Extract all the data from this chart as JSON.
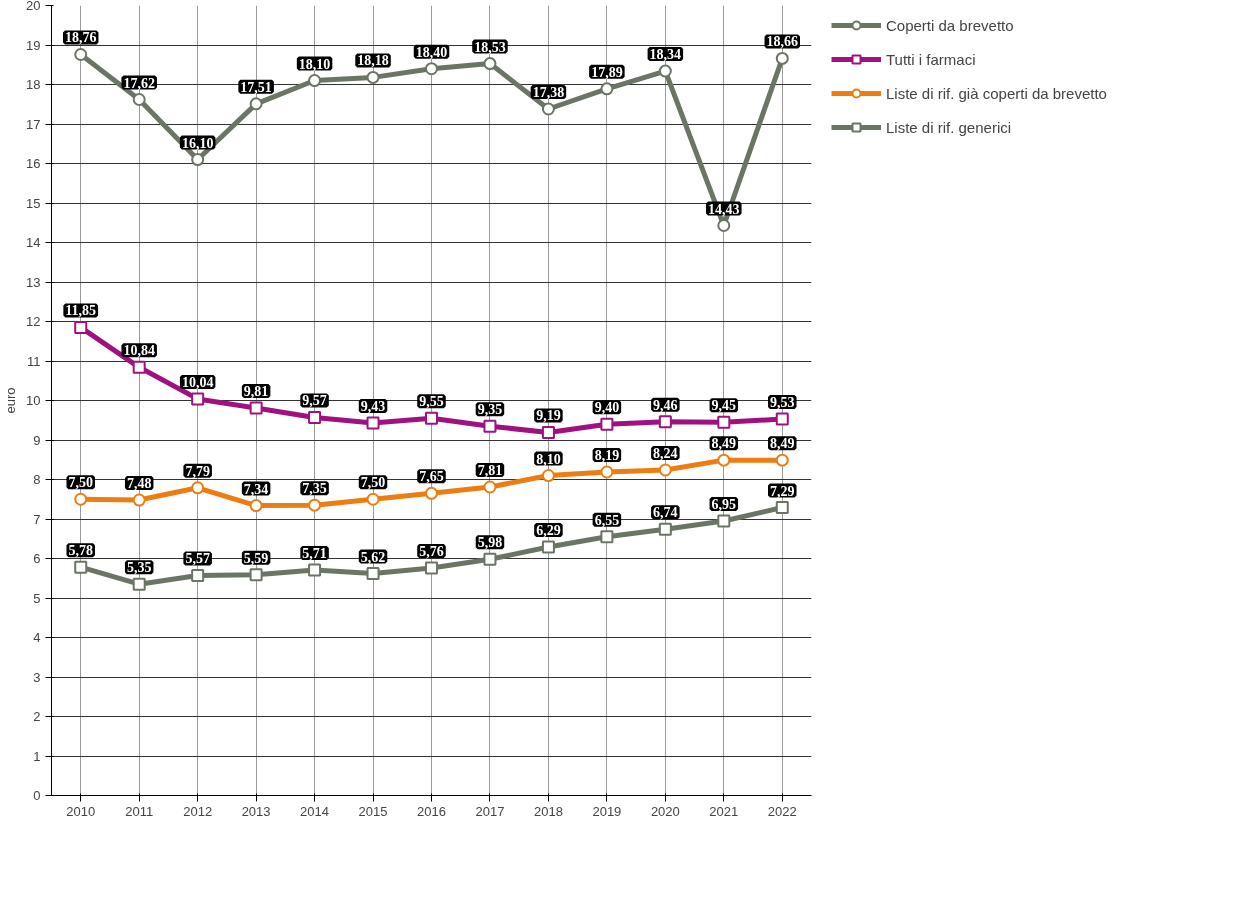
{
  "chart_data": {
    "type": "line",
    "ylabel": "euro",
    "categories": [
      "2010",
      "2011",
      "2012",
      "2013",
      "2014",
      "2015",
      "2016",
      "2017",
      "2018",
      "2019",
      "2020",
      "2021",
      "2022"
    ],
    "ylim": [
      0,
      20
    ],
    "yticks": [
      0,
      1,
      2,
      3,
      4,
      5,
      6,
      7,
      8,
      9,
      10,
      11,
      12,
      13,
      14,
      15,
      16,
      17,
      18,
      19,
      20
    ],
    "grid": true,
    "legend": "right",
    "series": [
      {
        "name": "Coperti da brevetto",
        "color": "#6b7565",
        "marker": "circle",
        "values": [
          18.76,
          17.62,
          16.1,
          17.51,
          18.1,
          18.18,
          18.4,
          18.53,
          17.38,
          17.89,
          18.34,
          14.43,
          18.66
        ],
        "value_labels": [
          "18,76",
          "17,62",
          "16,10",
          "17,51",
          "18,10",
          "18,18",
          "18,40",
          "18,53",
          "17,38",
          "17,89",
          "18,34",
          "14,43",
          "18,66"
        ]
      },
      {
        "name": "Tutti i farmaci",
        "color": "#a0117f",
        "marker": "square",
        "values": [
          11.85,
          10.84,
          10.04,
          9.81,
          9.57,
          9.43,
          9.55,
          9.35,
          9.19,
          9.4,
          9.46,
          9.45,
          9.53
        ],
        "value_labels": [
          "11,85",
          "10,84",
          "10,04",
          "9,81",
          "9,57",
          "9,43",
          "9,55",
          "9,35",
          "9,19",
          "9,40",
          "9,46",
          "9,45",
          "9,53"
        ]
      },
      {
        "name": "Liste di rif. già coperti da brevetto",
        "color": "#ee7d11",
        "marker": "circle",
        "values": [
          7.5,
          7.48,
          7.79,
          7.34,
          7.35,
          7.5,
          7.65,
          7.81,
          8.1,
          8.19,
          8.24,
          8.49,
          8.49
        ],
        "value_labels": [
          "7,50",
          "7,48",
          "7,79",
          "7,34",
          "7,35",
          "7,50",
          "7,65",
          "7,81",
          "8,10",
          "8,19",
          "8,24",
          "8,49",
          "8,49"
        ]
      },
      {
        "name": "Liste di rif. generici",
        "color": "#6b7565",
        "marker": "square",
        "values": [
          5.78,
          5.35,
          5.57,
          5.59,
          5.71,
          5.62,
          5.76,
          5.98,
          6.29,
          6.55,
          6.74,
          6.95,
          7.29
        ],
        "value_labels": [
          "5,78",
          "5,35",
          "5,57",
          "5,59",
          "5,71",
          "5,62",
          "5,76",
          "5,98",
          "6,29",
          "6,55",
          "6,74",
          "6,95",
          "7,29"
        ]
      }
    ]
  }
}
